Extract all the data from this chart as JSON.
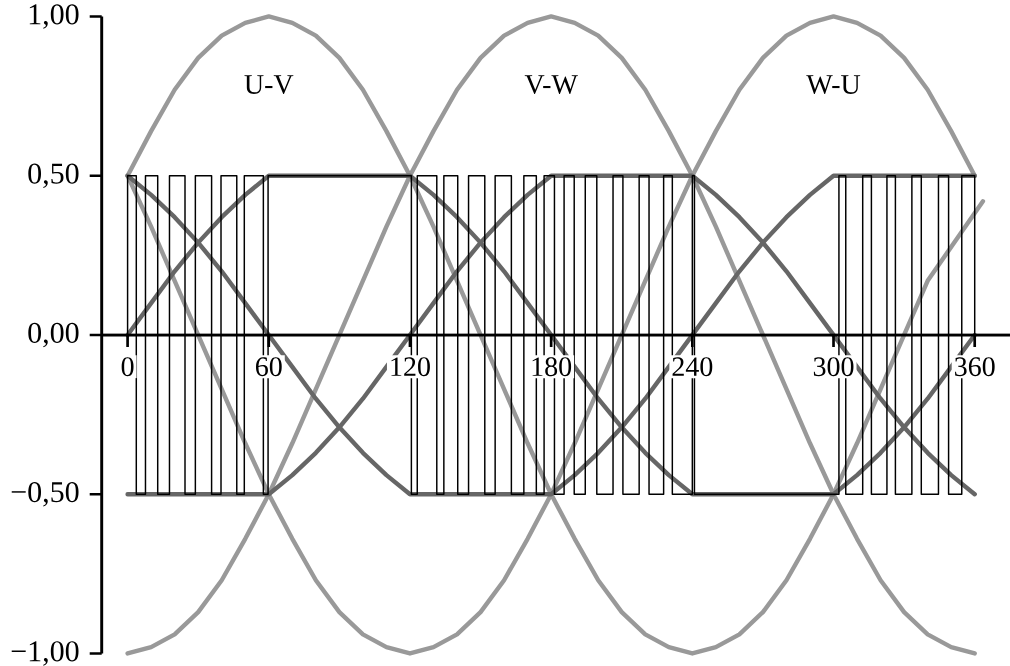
{
  "chart_data": {
    "type": "line",
    "xlim": [
      -11,
      375
    ],
    "ylim": [
      -1,
      1
    ],
    "xticks": [
      0,
      60,
      120,
      180,
      240,
      300,
      360
    ],
    "yticks": [
      {
        "value": -1,
        "label": "−1,00"
      },
      {
        "value": -0.5,
        "label": "−0,50"
      },
      {
        "value": 0,
        "label": "0,00"
      },
      {
        "value": 0.5,
        "label": "0,50"
      },
      {
        "value": 1,
        "label": "1,00"
      }
    ],
    "x": [
      0,
      10,
      20,
      30,
      40,
      50,
      60,
      70,
      80,
      90,
      100,
      110,
      120,
      130,
      140,
      150,
      160,
      170,
      180,
      190,
      200,
      210,
      220,
      230,
      240,
      250,
      260,
      270,
      280,
      290,
      300,
      310,
      320,
      330,
      340,
      350,
      360
    ],
    "series": [
      {
        "name": "U-V",
        "color": "#999999",
        "x": [
          0,
          10,
          20,
          30,
          40,
          50,
          60,
          70,
          80,
          90,
          100,
          110,
          120,
          130,
          140,
          150,
          160,
          170,
          180,
          190,
          200,
          210,
          220,
          230,
          240,
          250,
          260,
          270,
          280,
          290,
          300,
          310,
          320,
          330,
          340,
          363.5
        ],
        "values": [
          0.5,
          0.64,
          0.77,
          0.87,
          0.94,
          0.98,
          1,
          0.98,
          0.94,
          0.87,
          0.77,
          0.64,
          0.5,
          0.34,
          0.17,
          0,
          -0.17,
          -0.34,
          -0.5,
          -0.64,
          -0.77,
          -0.87,
          -0.94,
          -0.98,
          -1,
          -0.98,
          -0.94,
          -0.87,
          -0.77,
          -0.64,
          -0.5,
          -0.34,
          -0.17,
          0,
          0.17,
          0.42
        ]
      },
      {
        "name": "V-W",
        "color": "#999999",
        "values": [
          -1,
          -0.98,
          -0.94,
          -0.87,
          -0.77,
          -0.64,
          -0.5,
          -0.34,
          -0.17,
          0,
          0.17,
          0.34,
          0.5,
          0.64,
          0.77,
          0.87,
          0.94,
          0.98,
          1,
          0.98,
          0.94,
          0.87,
          0.77,
          0.64,
          0.5,
          0.34,
          0.17,
          0,
          -0.17,
          -0.34,
          -0.5,
          -0.64,
          -0.77,
          -0.87,
          -0.94,
          -0.98,
          -1
        ]
      },
      {
        "name": "W-U",
        "color": "#999999",
        "values": [
          0.5,
          0.34,
          0.17,
          0,
          -0.17,
          -0.34,
          -0.5,
          -0.64,
          -0.77,
          -0.87,
          -0.94,
          -0.98,
          -1,
          -0.98,
          -0.94,
          -0.87,
          -0.77,
          -0.64,
          -0.5,
          -0.34,
          -0.17,
          0,
          0.17,
          0.34,
          0.5,
          0.64,
          0.77,
          0.87,
          0.94,
          0.98,
          1,
          0.98,
          0.94,
          0.87,
          0.77,
          0.64,
          0.5
        ]
      },
      {
        "color": "#666666",
        "values": [
          0,
          0.1,
          0.2,
          0.29,
          0.37,
          0.44,
          0.5,
          0.5,
          0.5,
          0.5,
          0.5,
          0.5,
          0.5,
          0.44,
          0.37,
          0.29,
          0.2,
          0.1,
          0,
          -0.1,
          -0.2,
          -0.29,
          -0.37,
          -0.44,
          -0.5,
          -0.5,
          -0.5,
          -0.5,
          -0.5,
          -0.5,
          -0.5,
          -0.44,
          -0.37,
          -0.29,
          -0.2,
          -0.1,
          0
        ]
      },
      {
        "color": "#666666",
        "values": [
          -0.5,
          -0.5,
          -0.5,
          -0.5,
          -0.5,
          -0.5,
          -0.5,
          -0.44,
          -0.37,
          -0.29,
          -0.2,
          -0.1,
          0,
          0.1,
          0.2,
          0.29,
          0.37,
          0.44,
          0.5,
          0.5,
          0.5,
          0.5,
          0.5,
          0.5,
          0.5,
          0.44,
          0.37,
          0.29,
          0.2,
          0.1,
          0,
          -0.1,
          -0.2,
          -0.29,
          -0.37,
          -0.44,
          -0.5
        ]
      },
      {
        "color": "#666666",
        "values": [
          0.5,
          0.44,
          0.37,
          0.29,
          0.2,
          0.1,
          0,
          -0.1,
          -0.2,
          -0.29,
          -0.37,
          -0.44,
          -0.5,
          -0.5,
          -0.5,
          -0.5,
          -0.5,
          -0.5,
          -0.5,
          -0.44,
          -0.37,
          -0.29,
          -0.2,
          -0.1,
          0,
          0.1,
          0.2,
          0.29,
          0.37,
          0.44,
          0.5,
          0.5,
          0.5,
          0.5,
          0.5,
          0.5,
          0.5
        ]
      },
      {
        "type": "step",
        "color": "#000000",
        "x": [
          0,
          0,
          3.7,
          7.6,
          12.8,
          17.8,
          24.4,
          28.8,
          35.7,
          39.7,
          46.4,
          49.6,
          57.7,
          59.7,
          120.6,
          123.1,
          131.4,
          134.4,
          140.3,
          144.9,
          151.8,
          156.2,
          163.1,
          168.4,
          173.7,
          177,
          181.4,
          185.5,
          189.8,
          194.5,
          199.4,
          206.3,
          210.5,
          217.4,
          221.6,
          227.8,
          231.5,
          240,
          240.9,
          302.3,
          305.2,
          312.4,
          316.1,
          322.7,
          326.3,
          333.3,
          337.3,
          344.6,
          348.9,
          354.5,
          360
        ],
        "values": [
          0,
          0.5,
          -0.5,
          0.5,
          -0.5,
          0.5,
          -0.5,
          0.5,
          -0.5,
          0.5,
          -0.5,
          0.5,
          -0.5,
          0.5,
          -0.5,
          0.5,
          -0.5,
          0.5,
          -0.5,
          0.5,
          -0.5,
          0.5,
          -0.5,
          0.5,
          -0.5,
          0.5,
          -0.5,
          0.5,
          -0.5,
          0.5,
          -0.5,
          0.5,
          -0.5,
          0.5,
          -0.5,
          0.5,
          -0.5,
          0.5,
          -0.5,
          0.5,
          -0.5,
          0.5,
          -0.5,
          0.5,
          -0.5,
          0.5,
          -0.5,
          0.5,
          -0.5,
          0.5,
          0
        ]
      }
    ]
  }
}
